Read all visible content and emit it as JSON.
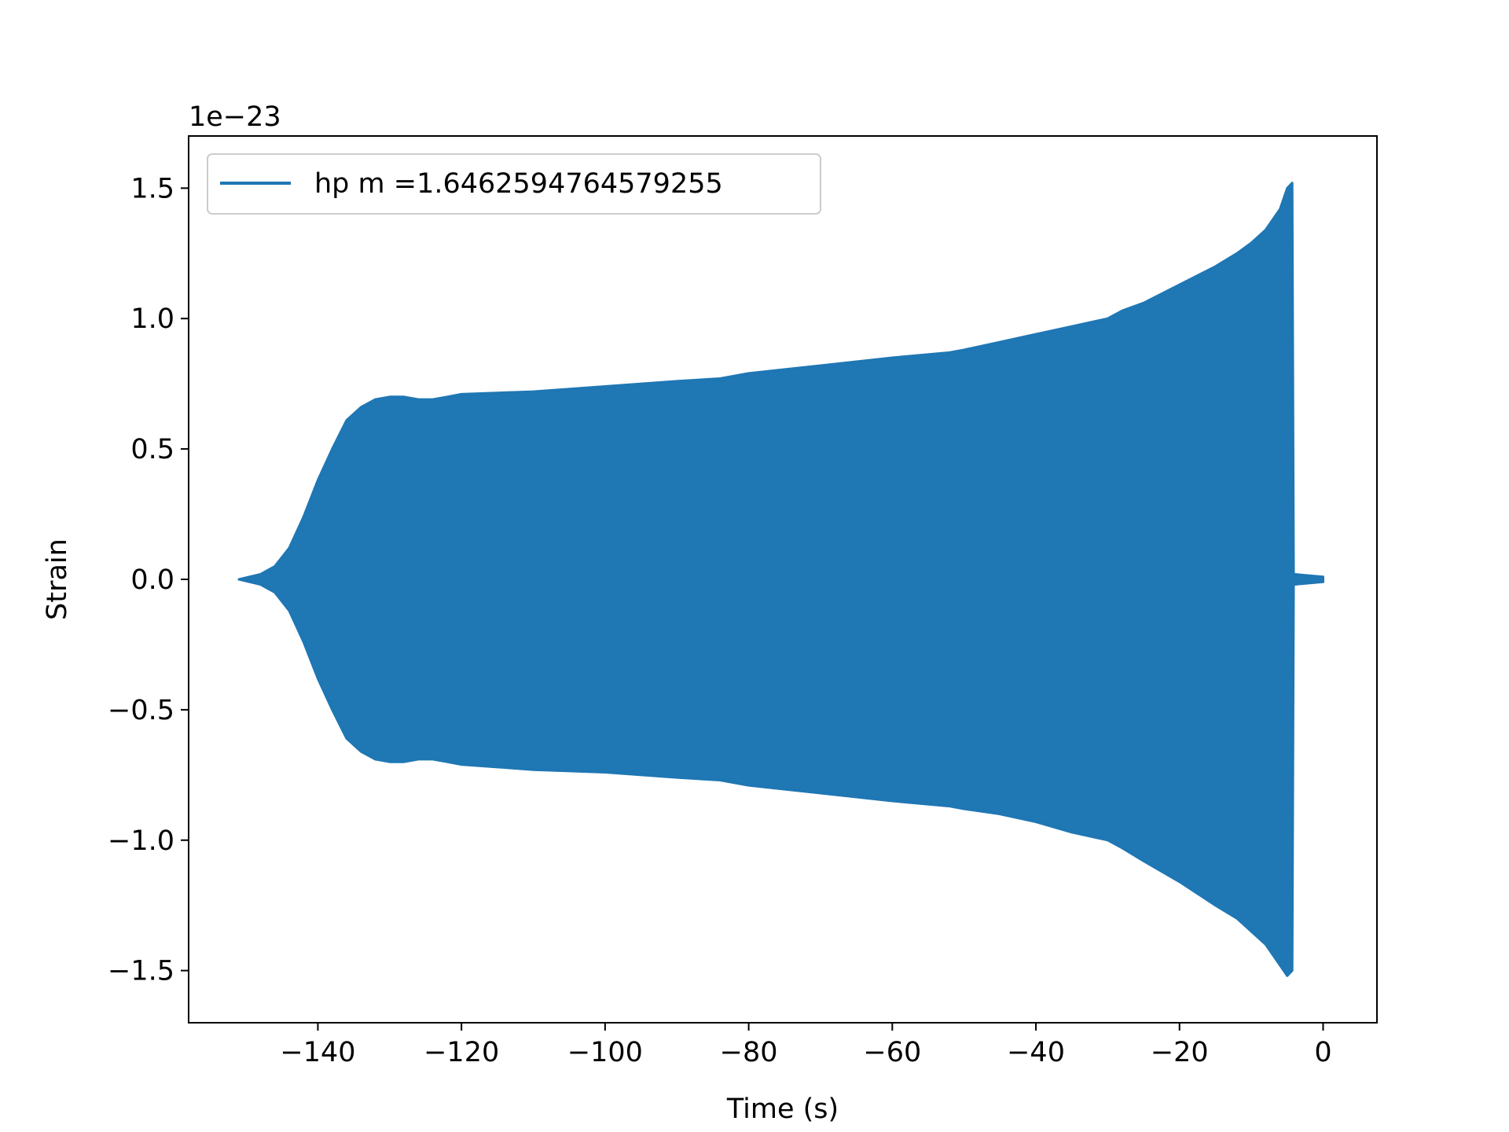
{
  "chart_data": {
    "type": "line",
    "title": "",
    "xlabel": "Time (s)",
    "ylabel": "Strain",
    "y_offset_label": "1e−23",
    "xlim": [
      -158,
      7.5
    ],
    "ylim": [
      -1.7,
      1.7
    ],
    "x_ticks": [
      -140,
      -120,
      -100,
      -80,
      -60,
      -40,
      -20,
      0
    ],
    "x_tick_labels": [
      "−140",
      "−120",
      "−100",
      "−80",
      "−60",
      "−40",
      "−20",
      "0"
    ],
    "y_ticks": [
      1.5,
      1.0,
      0.5,
      0.0,
      -0.5,
      -1.0,
      -1.5
    ],
    "y_tick_labels": [
      "1.5",
      "1.0",
      "0.5",
      "0.0",
      "−0.5",
      "−1.0",
      "−1.5"
    ],
    "grid": false,
    "legend": {
      "position": "top-left",
      "entries": [
        "hp m =1.6462594764579255"
      ]
    },
    "series_color": "#1f77b4",
    "series": [
      {
        "name": "hp m =1.6462594764579255",
        "x": [
          -151,
          -148,
          -146,
          -144,
          -142,
          -140,
          -138,
          -136,
          -134,
          -132,
          -130,
          -128,
          -126,
          -124,
          -122,
          -120,
          -110,
          -100,
          -90,
          -84,
          -80,
          -70,
          -60,
          -52,
          -50,
          -45,
          -40,
          -35,
          -30,
          -28,
          -25,
          -20,
          -15,
          -12,
          -10,
          -8,
          -6,
          -5,
          -4.3,
          -4.1,
          0
        ],
        "upper": [
          0.0,
          0.02,
          0.05,
          0.12,
          0.24,
          0.38,
          0.5,
          0.61,
          0.66,
          0.69,
          0.7,
          0.7,
          0.69,
          0.69,
          0.7,
          0.71,
          0.72,
          0.74,
          0.76,
          0.77,
          0.79,
          0.82,
          0.85,
          0.87,
          0.88,
          0.91,
          0.94,
          0.97,
          1.0,
          1.03,
          1.06,
          1.13,
          1.2,
          1.25,
          1.29,
          1.34,
          1.42,
          1.5,
          1.52,
          0.02,
          0.01
        ],
        "lower": [
          0.0,
          -0.02,
          -0.05,
          -0.12,
          -0.24,
          -0.38,
          -0.5,
          -0.61,
          -0.66,
          -0.69,
          -0.7,
          -0.7,
          -0.69,
          -0.69,
          -0.7,
          -0.71,
          -0.73,
          -0.74,
          -0.76,
          -0.77,
          -0.79,
          -0.82,
          -0.85,
          -0.87,
          -0.88,
          -0.9,
          -0.93,
          -0.97,
          -1.0,
          -1.03,
          -1.08,
          -1.16,
          -1.25,
          -1.3,
          -1.35,
          -1.4,
          -1.48,
          -1.52,
          -1.5,
          -0.02,
          -0.01
        ]
      }
    ]
  }
}
